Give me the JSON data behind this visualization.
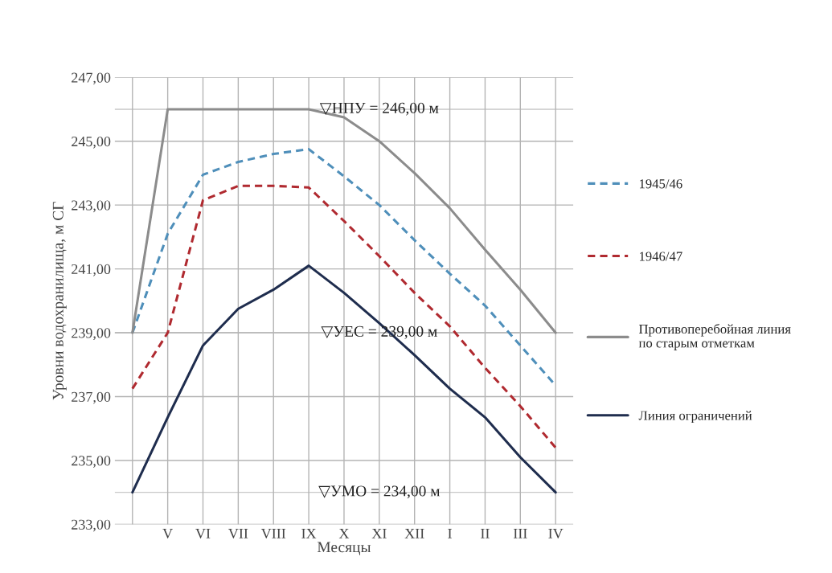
{
  "chart_data": {
    "type": "line",
    "xlabel": "Месяцы",
    "ylabel": "Уровни водохранилища, м СГ",
    "categories": [
      null,
      "V",
      "VI",
      "VII",
      "VIII",
      "IX",
      "X",
      "XI",
      "XII",
      "I",
      "II",
      "III",
      "IV"
    ],
    "series": [
      {
        "name": "1945/46",
        "color": "#4f8fba",
        "line_style": "dashed",
        "values": [
          239.0,
          242.1,
          243.95,
          244.35,
          244.6,
          244.75,
          243.9,
          243.0,
          241.9,
          240.85,
          239.85,
          238.6,
          237.35
        ]
      },
      {
        "name": "1946/47",
        "color": "#b02a30",
        "line_style": "dashed",
        "values": [
          237.25,
          239.0,
          243.15,
          243.6,
          243.6,
          243.55,
          242.5,
          241.4,
          240.25,
          239.2,
          237.9,
          236.7,
          235.4
        ]
      },
      {
        "name": "Противоперебойная линия\nпо старым отметкам",
        "color": "#8c8c8c",
        "line_style": "solid",
        "values": [
          239.0,
          246.0,
          246.0,
          246.0,
          246.0,
          246.0,
          245.75,
          245.0,
          244.0,
          242.9,
          241.6,
          240.35,
          239.0
        ]
      },
      {
        "name": "Линия ограничений",
        "color": "#1f2d4e",
        "line_style": "solid",
        "values": [
          234.0,
          236.35,
          238.6,
          239.75,
          240.35,
          241.1,
          240.25,
          239.3,
          238.3,
          237.25,
          236.35,
          235.1,
          234.0
        ]
      }
    ],
    "ylim": [
      233,
      247
    ],
    "yticks": [
      {
        "value": 233,
        "label": "233,00"
      },
      {
        "value": 235,
        "label": "235,00"
      },
      {
        "value": 237,
        "label": "237,00"
      },
      {
        "value": 239,
        "label": "239,00"
      },
      {
        "value": 241,
        "label": "241,00"
      },
      {
        "value": 243,
        "label": "243,00"
      },
      {
        "value": 245,
        "label": "245,00"
      },
      {
        "value": 247,
        "label": "247,00"
      }
    ],
    "ref_lines": [
      {
        "axis": "y",
        "value": 246,
        "label": "▽НПУ = 246,00 м",
        "color": "#c8c8c8"
      },
      {
        "axis": "y",
        "value": 239,
        "label": "▽УЕС = 239,00 м",
        "color": "#c8c8c8"
      },
      {
        "axis": "y",
        "value": 234,
        "label": "▽УМО = 234,00 м",
        "color": "#c8c8c8"
      }
    ],
    "grid": true,
    "legend": "right",
    "marker": "none"
  }
}
